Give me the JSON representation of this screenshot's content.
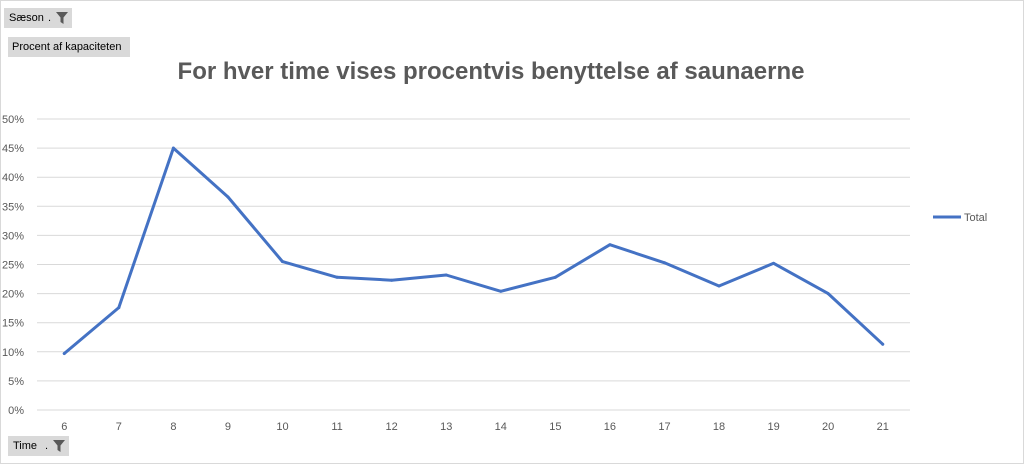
{
  "filter_buttons": {
    "season": {
      "label": "Sæson",
      "marker": "."
    },
    "values": {
      "label": "Procent af kapaciteten"
    },
    "axis": {
      "label": "Time",
      "marker": "."
    }
  },
  "chart_data": {
    "type": "line",
    "title": "For hver time vises procentvis benyttelse af saunaerne",
    "xlabel": "",
    "ylabel": "",
    "categories": [
      "6",
      "7",
      "8",
      "9",
      "10",
      "11",
      "12",
      "13",
      "14",
      "15",
      "16",
      "17",
      "18",
      "19",
      "20",
      "21"
    ],
    "series": [
      {
        "name": "Total",
        "color": "#4472c4",
        "values": [
          0.097,
          0.176,
          0.45,
          0.366,
          0.255,
          0.228,
          0.223,
          0.232,
          0.204,
          0.228,
          0.284,
          0.253,
          0.213,
          0.252,
          0.2,
          0.113
        ]
      }
    ],
    "ylim": [
      0,
      0.5
    ],
    "yticks": [
      "0%",
      "5%",
      "10%",
      "15%",
      "20%",
      "25%",
      "30%",
      "35%",
      "40%",
      "45%",
      "50%"
    ],
    "grid": true,
    "legend": "right"
  }
}
